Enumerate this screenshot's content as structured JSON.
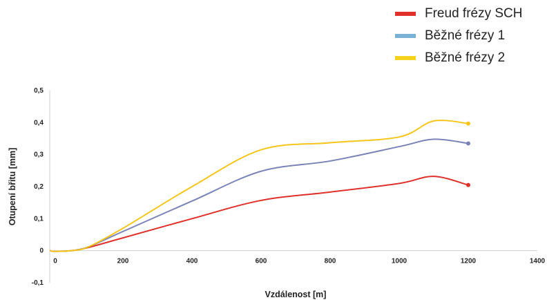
{
  "chart_data": {
    "type": "line",
    "xlabel": "Vzdálenost [m]",
    "ylabel": "Otupení břitu [mm]",
    "xlim": [
      0,
      1400
    ],
    "ylim": [
      -0.1,
      0.5
    ],
    "x_ticks": [
      0,
      200,
      400,
      600,
      800,
      1000,
      1200,
      1400
    ],
    "x_tick_labels": [
      "0",
      "200",
      "400",
      "600",
      "800",
      "1000",
      "1200",
      "1400"
    ],
    "y_ticks": [
      0.5,
      0.4,
      0.3,
      0.2,
      0.1,
      0,
      -0.1
    ],
    "y_tick_labels": [
      "0,5",
      "0,4",
      "0,3",
      "0,2",
      "0,1",
      "0",
      "-0,1"
    ],
    "grid": false,
    "legend_position": "top-right",
    "series": [
      {
        "name": "Freud frézy SCH",
        "color": "#e0302a",
        "x": [
          -10,
          0,
          50,
          100,
          200,
          400,
          600,
          800,
          1000,
          1100,
          1200
        ],
        "y": [
          0.0,
          -0.002,
          0.0,
          0.01,
          0.04,
          0.1,
          0.157,
          0.183,
          0.21,
          0.232,
          0.205
        ]
      },
      {
        "name": "Běžné frézy 1",
        "color": "#7a83b8",
        "legend_color": "#7ab2d4",
        "x": [
          -10,
          0,
          50,
          100,
          200,
          400,
          600,
          800,
          1000,
          1100,
          1200
        ],
        "y": [
          0.0,
          -0.002,
          0.0,
          0.012,
          0.06,
          0.155,
          0.248,
          0.28,
          0.325,
          0.348,
          0.335
        ]
      },
      {
        "name": "Běžné frézy 2",
        "color": "#f5c518",
        "legend_color": "#f5d21e",
        "x": [
          -10,
          0,
          50,
          100,
          200,
          400,
          600,
          800,
          1000,
          1100,
          1200
        ],
        "y": [
          0.0,
          -0.002,
          0.0,
          0.012,
          0.07,
          0.2,
          0.315,
          0.337,
          0.355,
          0.405,
          0.397
        ]
      }
    ]
  }
}
